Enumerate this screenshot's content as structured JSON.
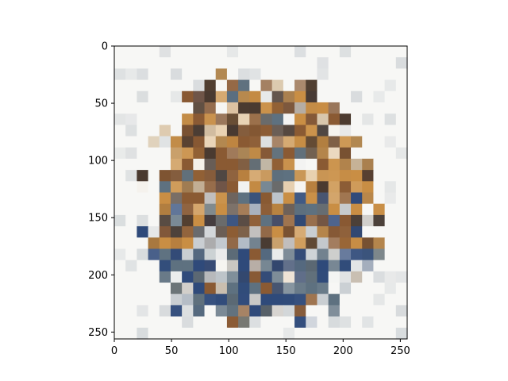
{
  "figure": {
    "background_color": "#ffffff",
    "axes_color": "#000000"
  },
  "image": {
    "description_kind": "mosaic of small textured patches",
    "palette": [
      "#f7f7f5",
      "#c98e44",
      "#8a5a33",
      "#4a3a30",
      "#5e7180",
      "#2f4a7a",
      "#c9ced2",
      "#e9d3b4"
    ]
  },
  "axes": {
    "x": {
      "min": 0,
      "max": 256,
      "ticks": [
        {
          "value": 0,
          "label": "0"
        },
        {
          "value": 50,
          "label": "50"
        },
        {
          "value": 100,
          "label": "100"
        },
        {
          "value": 150,
          "label": "150"
        },
        {
          "value": 200,
          "label": "200"
        },
        {
          "value": 250,
          "label": "250"
        }
      ]
    },
    "y": {
      "min": 0,
      "max": 256,
      "inverted": true,
      "ticks": [
        {
          "value": 0,
          "label": "0"
        },
        {
          "value": 50,
          "label": "50"
        },
        {
          "value": 100,
          "label": "100"
        },
        {
          "value": 150,
          "label": "150"
        },
        {
          "value": 200,
          "label": "200"
        },
        {
          "value": 250,
          "label": "250"
        }
      ]
    }
  }
}
